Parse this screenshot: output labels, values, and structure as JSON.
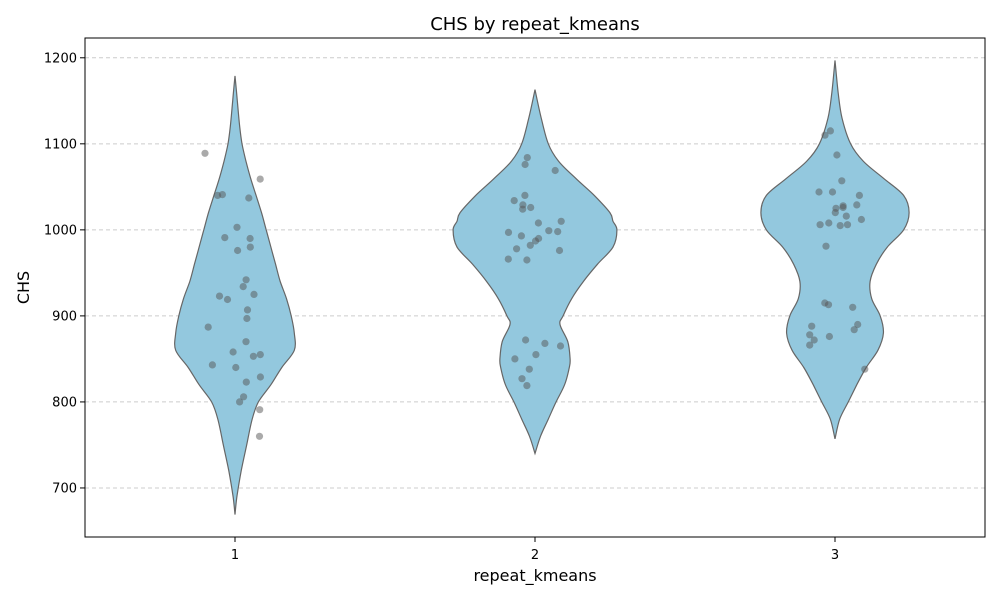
{
  "chart_data": {
    "type": "violin",
    "title": "CHS by repeat_kmeans",
    "xlabel": "repeat_kmeans",
    "ylabel": "CHS",
    "categories": [
      "1",
      "2",
      "3"
    ],
    "ylim": [
      643,
      1223
    ],
    "yticks": [
      700,
      800,
      900,
      1000,
      1100,
      1200
    ],
    "grid": "y-dashed",
    "violin_color": "#93c8de",
    "edge_color": "#666666",
    "point_color": "#555555",
    "violins": [
      {
        "category": "1",
        "range": [
          669,
          1179
        ],
        "profile": [
          [
            669,
            0.0
          ],
          [
            690,
            0.025
          ],
          [
            720,
            0.08
          ],
          [
            750,
            0.15
          ],
          [
            780,
            0.22
          ],
          [
            800,
            0.3
          ],
          [
            820,
            0.46
          ],
          [
            840,
            0.6
          ],
          [
            860,
            0.76
          ],
          [
            880,
            0.76
          ],
          [
            900,
            0.72
          ],
          [
            920,
            0.66
          ],
          [
            940,
            0.58
          ],
          [
            960,
            0.52
          ],
          [
            980,
            0.46
          ],
          [
            1000,
            0.4
          ],
          [
            1020,
            0.34
          ],
          [
            1040,
            0.27
          ],
          [
            1060,
            0.2
          ],
          [
            1080,
            0.14
          ],
          [
            1100,
            0.09
          ],
          [
            1120,
            0.06
          ],
          [
            1150,
            0.03
          ],
          [
            1179,
            0.0
          ]
        ]
      },
      {
        "category": "2",
        "range": [
          740,
          1163
        ],
        "profile": [
          [
            740,
            0.0
          ],
          [
            760,
            0.07
          ],
          [
            780,
            0.17
          ],
          [
            800,
            0.27
          ],
          [
            820,
            0.38
          ],
          [
            840,
            0.44
          ],
          [
            850,
            0.45
          ],
          [
            870,
            0.42
          ],
          [
            890,
            0.32
          ],
          [
            900,
            0.36
          ],
          [
            920,
            0.47
          ],
          [
            940,
            0.62
          ],
          [
            960,
            0.8
          ],
          [
            980,
            1.0
          ],
          [
            1000,
            1.05
          ],
          [
            1010,
            1.0
          ],
          [
            1020,
            0.96
          ],
          [
            1040,
            0.76
          ],
          [
            1060,
            0.52
          ],
          [
            1080,
            0.3
          ],
          [
            1100,
            0.17
          ],
          [
            1130,
            0.08
          ],
          [
            1163,
            0.0
          ]
        ]
      },
      {
        "category": "3",
        "range": [
          757,
          1197
        ],
        "profile": [
          [
            757,
            0.0
          ],
          [
            780,
            0.06
          ],
          [
            800,
            0.17
          ],
          [
            820,
            0.28
          ],
          [
            840,
            0.4
          ],
          [
            860,
            0.55
          ],
          [
            880,
            0.62
          ],
          [
            900,
            0.58
          ],
          [
            920,
            0.47
          ],
          [
            940,
            0.45
          ],
          [
            960,
            0.53
          ],
          [
            980,
            0.67
          ],
          [
            1000,
            0.88
          ],
          [
            1020,
            0.95
          ],
          [
            1040,
            0.88
          ],
          [
            1060,
            0.62
          ],
          [
            1080,
            0.36
          ],
          [
            1100,
            0.2
          ],
          [
            1130,
            0.09
          ],
          [
            1160,
            0.04
          ],
          [
            1197,
            0.0
          ]
        ]
      }
    ],
    "points": [
      {
        "category": "1",
        "values": [
          1089,
          1059,
          1041,
          1040,
          1037,
          1003,
          991,
          990,
          980,
          976,
          942,
          934,
          925,
          923,
          919,
          907,
          897,
          887,
          870,
          858,
          855,
          853,
          843,
          840,
          829,
          823,
          806,
          800,
          791,
          760
        ]
      },
      {
        "category": "2",
        "values": [
          1084,
          1076,
          1069,
          1040,
          1034,
          1029,
          1026,
          1024,
          1010,
          1008,
          999,
          998,
          997,
          993,
          990,
          987,
          982,
          978,
          976,
          966,
          965,
          872,
          868,
          865,
          855,
          850,
          838,
          827,
          819
        ]
      },
      {
        "category": "3",
        "values": [
          1115,
          1110,
          1087,
          1057,
          1044,
          1040,
          1044,
          1029,
          1028,
          1026,
          1025,
          1020,
          1016,
          1012,
          1008,
          1006,
          1006,
          1005,
          981,
          915,
          913,
          910,
          890,
          888,
          884,
          878,
          876,
          872,
          866,
          838
        ]
      }
    ]
  }
}
